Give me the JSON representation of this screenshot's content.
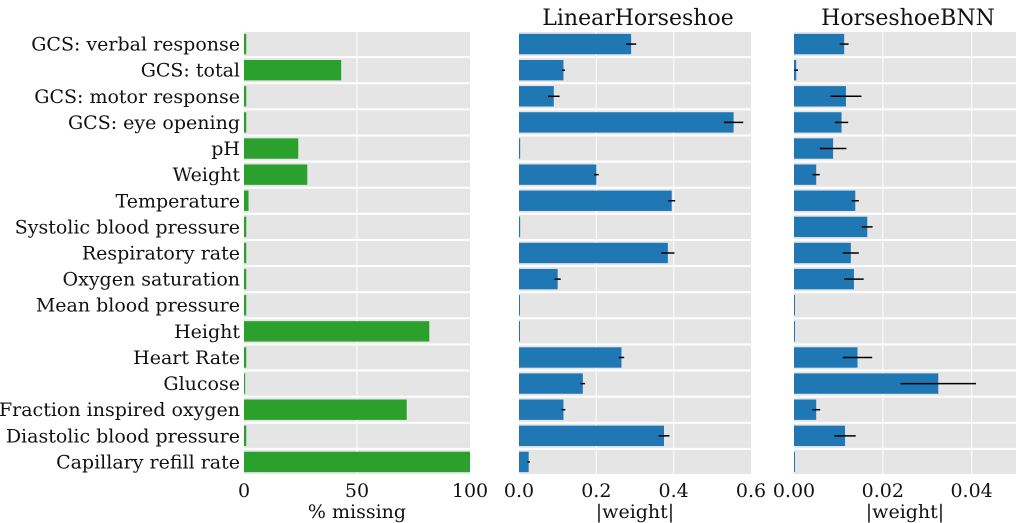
{
  "chart_data": [
    {
      "type": "bar",
      "orientation": "horizontal",
      "title": "",
      "xlabel": "% missing",
      "xlim": [
        0,
        100
      ],
      "xticks": [
        "0",
        "50",
        "100"
      ],
      "xtick_values": [
        0,
        50,
        100
      ],
      "color": "#2ca02c",
      "categories": [
        "GCS: verbal response",
        "GCS: total",
        "GCS: motor response",
        "GCS: eye opening",
        "pH",
        "Weight",
        "Temperature",
        "Systolic blood pressure",
        "Respiratory rate",
        "Oxygen saturation",
        "Mean blood pressure",
        "Height",
        "Heart Rate",
        "Glucose",
        "Fraction inspired oxygen",
        "Diastolic blood pressure",
        "Capillary refill rate"
      ],
      "values": [
        1,
        43,
        1,
        1,
        24,
        28,
        2,
        1,
        1,
        1,
        1,
        82,
        1,
        0.5,
        72,
        1,
        100
      ]
    },
    {
      "type": "bar",
      "orientation": "horizontal",
      "title": "LinearHorseshoe",
      "xlabel": "|weight|",
      "xlim": [
        0,
        0.6
      ],
      "xticks": [
        "0.0",
        "0.2",
        "0.4",
        "0.6"
      ],
      "xtick_values": [
        0,
        0.2,
        0.4,
        0.6
      ],
      "color": "#1f77b4",
      "values": [
        0.29,
        0.115,
        0.09,
        0.555,
        0.003,
        0.2,
        0.395,
        0.003,
        0.385,
        0.1,
        0.002,
        0.002,
        0.265,
        0.165,
        0.115,
        0.375,
        0.025
      ],
      "errors": [
        0.013,
        0.004,
        0.015,
        0.025,
        0.0,
        0.006,
        0.009,
        0.0,
        0.017,
        0.008,
        0.0,
        0.0,
        0.007,
        0.006,
        0.005,
        0.014,
        0.003
      ]
    },
    {
      "type": "bar",
      "orientation": "horizontal",
      "title": "HorseshoeBNN",
      "xlabel": "|weight|",
      "xlim": [
        0,
        0.05
      ],
      "xticks": [
        "0.00",
        "0.02",
        "0.04"
      ],
      "xtick_values": [
        0,
        0.02,
        0.04
      ],
      "color": "#1f77b4",
      "values": [
        0.0113,
        0.0005,
        0.0117,
        0.0107,
        0.0088,
        0.005,
        0.0138,
        0.0165,
        0.0128,
        0.0135,
        0.0001,
        0.0001,
        0.0143,
        0.0325,
        0.005,
        0.0115,
        0.0001
      ],
      "errors": [
        0.001,
        0.0004,
        0.0035,
        0.0015,
        0.003,
        0.0008,
        0.0008,
        0.0012,
        0.0018,
        0.0022,
        0.0,
        0.0,
        0.0033,
        0.0085,
        0.0009,
        0.0024,
        0.0
      ]
    }
  ]
}
